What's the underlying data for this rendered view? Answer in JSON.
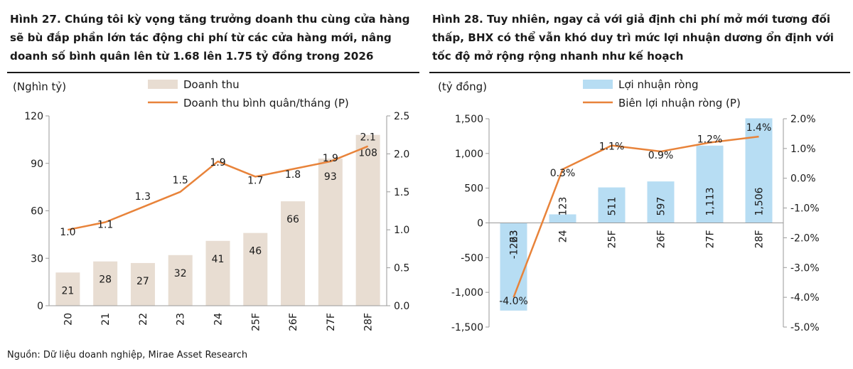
{
  "source": "Nguồn: Dữ liệu doanh nghiệp, Mirae Asset Research",
  "colors": {
    "bar_left": "#e8ddd2",
    "bar_right": "#b7ddf3",
    "line": "#e8833a",
    "axis": "#9a9a9a"
  },
  "chart_data": [
    {
      "type": "bar",
      "title": "Hình 27. Chúng tôi kỳ vọng tăng trưởng doanh thu cùng cửa hàng sẽ bù đắp phần lớn tác động chi phí từ các cửa hàng mới, nâng doanh số bình quân lên từ 1.68 lên 1.75 tỷ đồng trong 2026",
      "ylabel": "(Nghìn tỷ)",
      "categories": [
        "20",
        "21",
        "22",
        "23",
        "24",
        "25F",
        "26F",
        "27F",
        "28F"
      ],
      "ylim": [
        0,
        120
      ],
      "yticks": [
        0,
        30,
        60,
        90,
        120
      ],
      "ytick_labels": [
        "0",
        "30",
        "60",
        "90",
        "120"
      ],
      "y2lim": [
        0,
        2.5
      ],
      "y2ticks": [
        0,
        0.5,
        1,
        1.5,
        2,
        2.5
      ],
      "y2tick_labels": [
        "0.0",
        "0.5",
        "1.0",
        "1.5",
        "2.0",
        "2.5"
      ],
      "legend_position": "top",
      "grid": false,
      "series": [
        {
          "name": "Doanh thu",
          "type": "bar",
          "axis": "left",
          "values": [
            21,
            28,
            27,
            32,
            41,
            46,
            66,
            93,
            108
          ],
          "labels": [
            "21",
            "28",
            "27",
            "32",
            "41",
            "46",
            "66",
            "93",
            "108"
          ]
        },
        {
          "name": "Doanh thu bình quân/tháng (P)",
          "type": "line",
          "axis": "right",
          "values": [
            1.0,
            1.1,
            1.3,
            1.5,
            1.9,
            1.7,
            1.8,
            1.9,
            2.1
          ],
          "labels": [
            "1.0",
            "1.1",
            "1.3",
            "1.5",
            "1.9",
            "1.7",
            "1.8",
            "1.9",
            "2.1"
          ]
        }
      ]
    },
    {
      "type": "bar",
      "title": "Hình 28. Tuy nhiên, ngay cả với giả định chi phí mở mới tương đối thấp, BHX có thể vẫn khó duy trì mức lợi nhuận dương ổn định với tốc độ mở rộng rộng nhanh như kế hoạch",
      "ylabel": "(tỷ đồng)",
      "categories": [
        "23",
        "24",
        "25F",
        "26F",
        "27F",
        "28F"
      ],
      "ylim": [
        -1500,
        1500
      ],
      "yticks": [
        -1500,
        -1000,
        -500,
        0,
        500,
        1000,
        1500
      ],
      "ytick_labels": [
        "-1,500",
        "-1,000",
        "-500",
        "0",
        "500",
        "1,000",
        "1,500"
      ],
      "y2lim": [
        -5.0,
        2.0
      ],
      "y2ticks": [
        -5,
        -4,
        -3,
        -2,
        -1,
        0,
        1,
        2
      ],
      "y2tick_labels": [
        "-5.0%",
        "-4.0%",
        "-3.0%",
        "-2.0%",
        "-1.0%",
        "0.0%",
        "1.0%",
        "2.0%"
      ],
      "legend_position": "top",
      "grid": false,
      "series": [
        {
          "name": "Lợi nhuận ròng",
          "type": "bar",
          "axis": "left",
          "values": [
            -1263,
            123,
            511,
            597,
            1113,
            1506
          ],
          "labels": [
            "-1263",
            "123",
            "511",
            "597",
            "1,113",
            "1,506"
          ]
        },
        {
          "name": "Biên lợi nhuận ròng (P)",
          "type": "line",
          "axis": "right",
          "values": [
            -4.0,
            0.3,
            1.1,
            0.9,
            1.2,
            1.4
          ],
          "labels": [
            "-4.0%",
            "0.3%",
            "1.1%",
            "0.9%",
            "1.2%",
            "1.4%"
          ]
        }
      ]
    }
  ]
}
